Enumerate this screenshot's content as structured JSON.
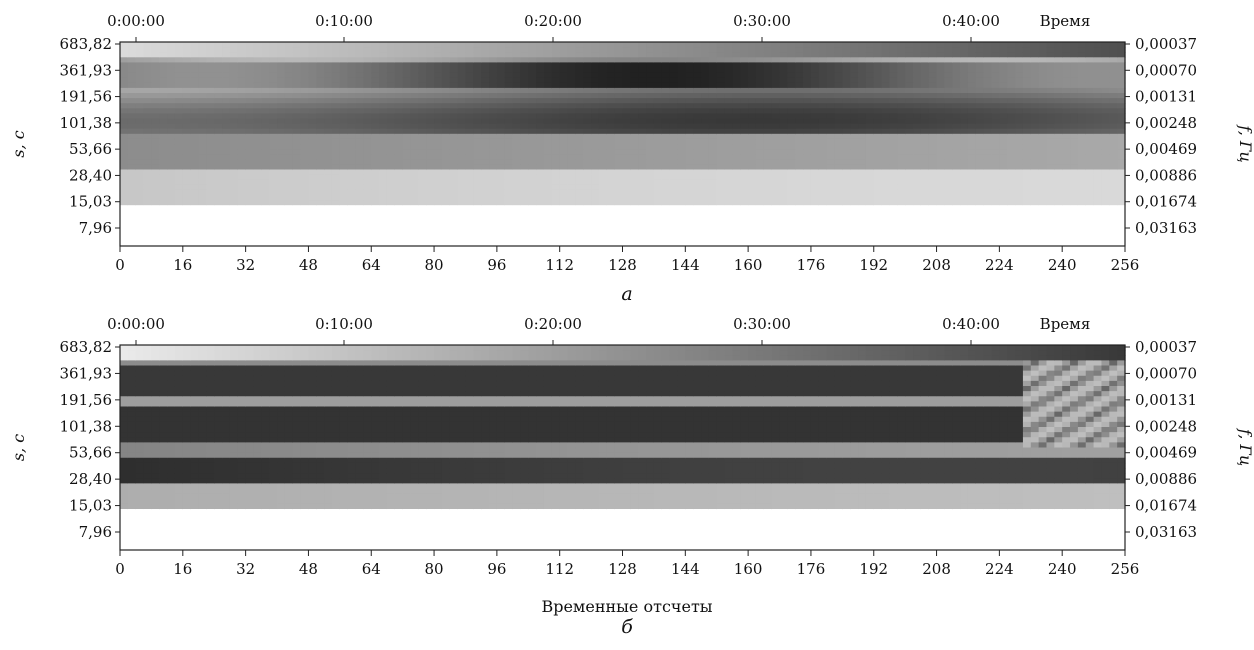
{
  "figure": {
    "x_axis_label": "Временные отсчеты"
  },
  "chart_data": [
    {
      "type": "heatmap",
      "panel_label": "а",
      "x": {
        "ticks": [
          0,
          16,
          32,
          48,
          64,
          80,
          96,
          112,
          128,
          144,
          160,
          176,
          192,
          208,
          224,
          240,
          256
        ],
        "range": [
          0,
          256
        ]
      },
      "top_axis": {
        "ticks": [
          "0:00:00",
          "0:10:00",
          "0:20:00",
          "0:30:00",
          "0:40:00"
        ],
        "label": "Время"
      },
      "y_left": {
        "label": "s, c",
        "ticks": [
          "683,82",
          "361,93",
          "191,56",
          "101,38",
          "53,66",
          "28,40",
          "15,03",
          "7,96"
        ]
      },
      "y_right": {
        "label": "f, Гц",
        "ticks": [
          "0,00037",
          "0,00070",
          "0,00131",
          "0,00248",
          "0,00469",
          "0,00886",
          "0,01674",
          "0,03163"
        ]
      },
      "colormap": "grayscale",
      "grid": false
    },
    {
      "type": "heatmap",
      "panel_label": "б",
      "x": {
        "ticks": [
          0,
          16,
          32,
          48,
          64,
          80,
          96,
          112,
          128,
          144,
          160,
          176,
          192,
          208,
          224,
          240,
          256
        ],
        "range": [
          0,
          256
        ]
      },
      "top_axis": {
        "ticks": [
          "0:00:00",
          "0:10:00",
          "0:20:00",
          "0:30:00",
          "0:40:00"
        ],
        "label": "Время"
      },
      "y_left": {
        "label": "s, c",
        "ticks": [
          "683,82",
          "361,93",
          "191,56",
          "101,38",
          "53,66",
          "28,40",
          "15,03",
          "7,96"
        ]
      },
      "y_right": {
        "label": "f, Гц",
        "ticks": [
          "0,00037",
          "0,00070",
          "0,00131",
          "0,00248",
          "0,00469",
          "0,00886",
          "0,01674",
          "0,03163"
        ]
      },
      "colormap": "grayscale",
      "grid": false
    }
  ]
}
